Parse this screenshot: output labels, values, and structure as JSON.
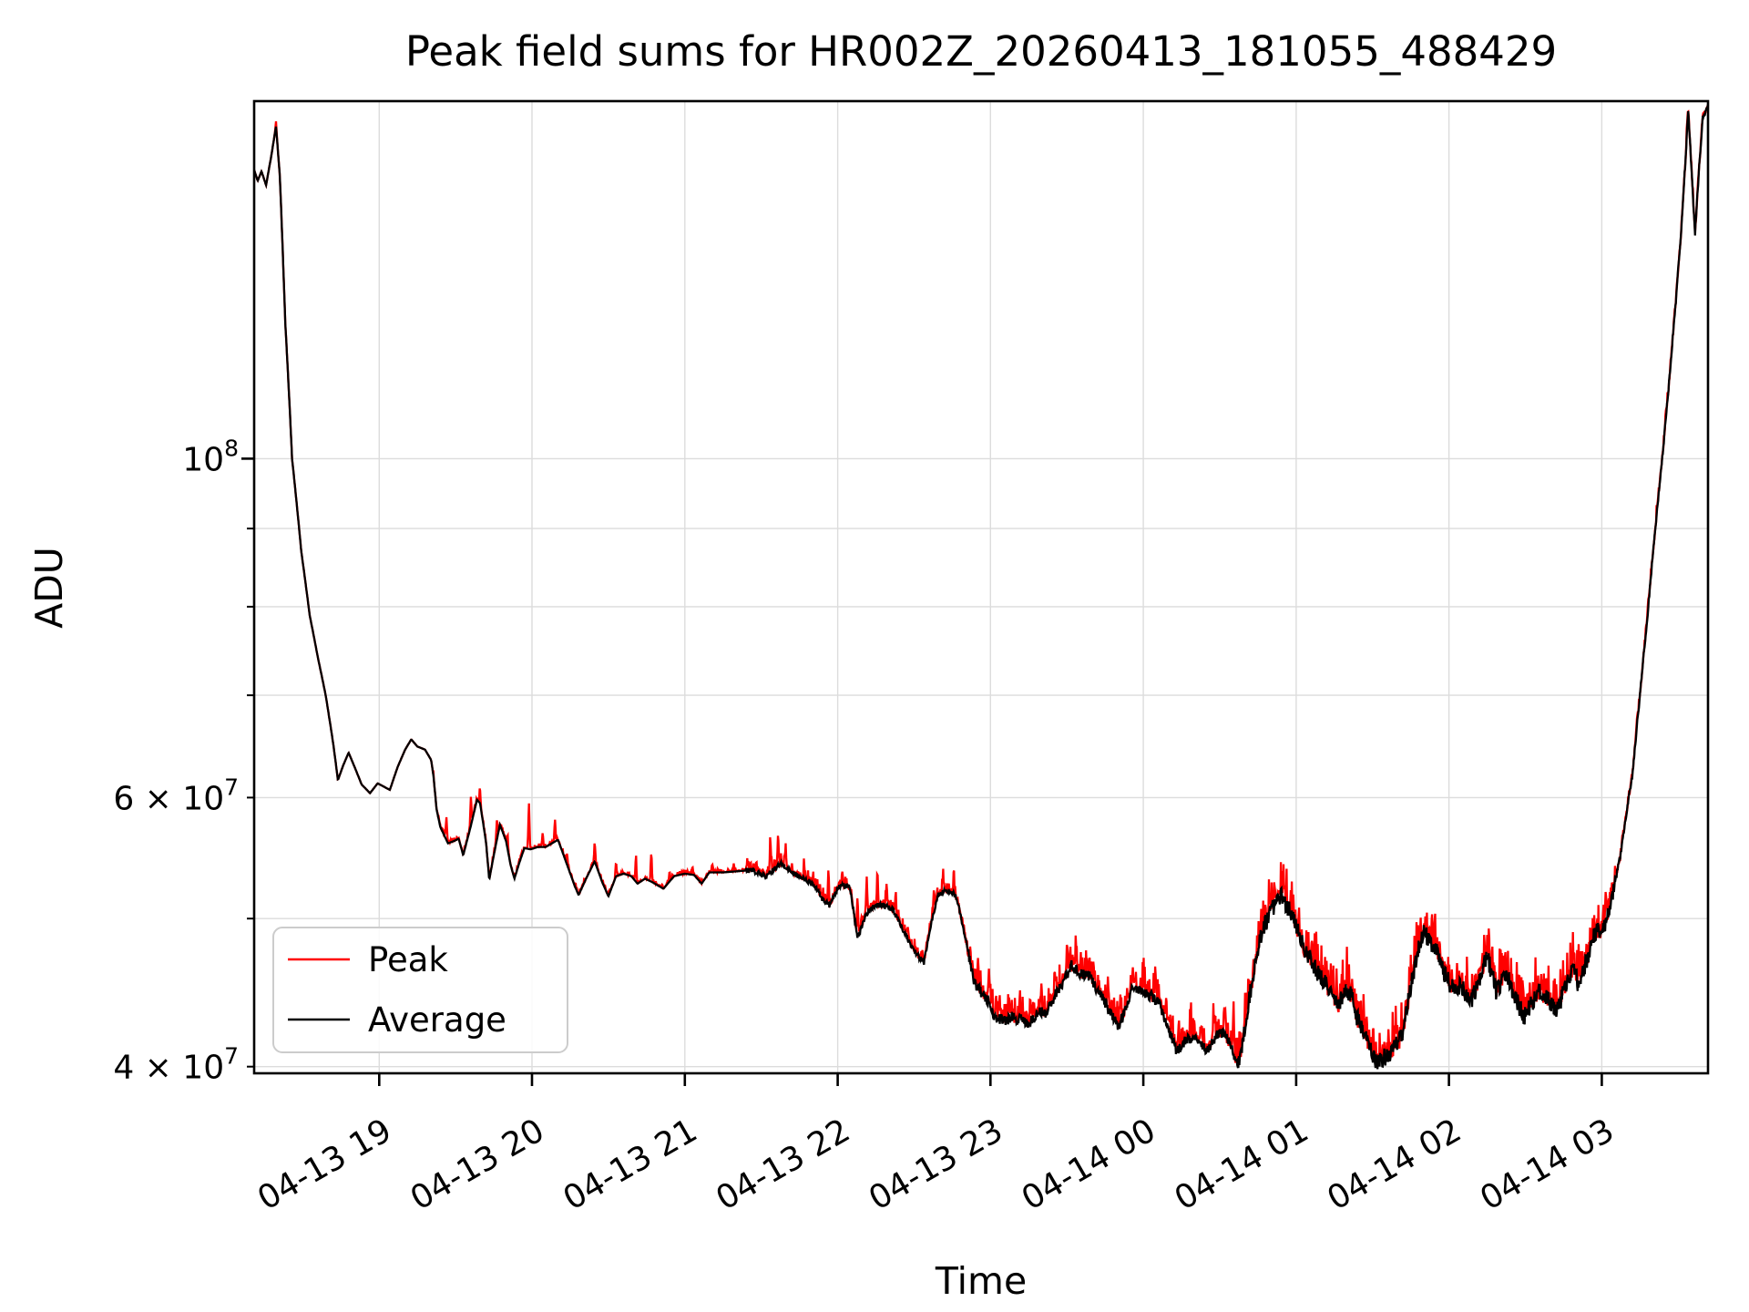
{
  "chart_data": {
    "type": "line",
    "title": "Peak field sums for HR002Z_20260413_181055_488429",
    "xlabel": "Time",
    "ylabel": "ADU",
    "yscale": "log",
    "grid": true,
    "legend_position": "lower left",
    "colors": {
      "peak": "#ff0000",
      "average": "#000000",
      "grid": "#dcdcdc",
      "frame": "#000000",
      "background": "#ffffff",
      "legend_border": "#cccccc"
    },
    "x_unit": "hours since 2026-04-13 00:00",
    "value_unit": "1e7 ADU",
    "xlim_hours": [
      18.1819,
      27.695
    ],
    "ylim": [
      39600000.0,
      171400000.0
    ],
    "x_ticks": [
      {
        "hour": 19,
        "label": "04-13 19"
      },
      {
        "hour": 20,
        "label": "04-13 20"
      },
      {
        "hour": 21,
        "label": "04-13 21"
      },
      {
        "hour": 22,
        "label": "04-13 22"
      },
      {
        "hour": 23,
        "label": "04-13 23"
      },
      {
        "hour": 24,
        "label": "04-14 00"
      },
      {
        "hour": 25,
        "label": "04-14 01"
      },
      {
        "hour": 26,
        "label": "04-14 02"
      },
      {
        "hour": 27,
        "label": "04-14 03"
      }
    ],
    "y_ticks": [
      {
        "value": 40000000.0,
        "label": "4 × 10^7",
        "major": false
      },
      {
        "value": 50000000.0,
        "label": "",
        "major": false
      },
      {
        "value": 60000000.0,
        "label": "6 × 10^7",
        "major": false
      },
      {
        "value": 70000000.0,
        "label": "",
        "major": false
      },
      {
        "value": 80000000.0,
        "label": "",
        "major": false
      },
      {
        "value": 90000000.0,
        "label": "",
        "major": false
      },
      {
        "value": 100000000.0,
        "label": "10^8",
        "major": true
      }
    ],
    "legend": [
      {
        "label": "Peak",
        "color": "#ff0000"
      },
      {
        "label": "Average",
        "color": "#000000"
      }
    ],
    "series": [
      {
        "name": "Average",
        "color": "#000000",
        "points": [
          [
            18.182,
            15.45
          ],
          [
            18.205,
            15.2
          ],
          [
            18.23,
            15.42
          ],
          [
            18.26,
            15.1
          ],
          [
            18.295,
            15.8
          ],
          [
            18.325,
            16.5
          ],
          [
            18.35,
            15.3
          ],
          [
            18.385,
            12.3
          ],
          [
            18.43,
            10.0
          ],
          [
            18.49,
            8.7
          ],
          [
            18.545,
            7.9
          ],
          [
            18.6,
            7.4
          ],
          [
            18.65,
            7.0
          ],
          [
            18.7,
            6.5
          ],
          [
            18.73,
            6.16
          ],
          [
            18.765,
            6.3
          ],
          [
            18.8,
            6.42
          ],
          [
            18.84,
            6.28
          ],
          [
            18.885,
            6.12
          ],
          [
            18.94,
            6.04
          ],
          [
            18.99,
            6.13
          ],
          [
            19.03,
            6.1
          ],
          [
            19.07,
            6.07
          ],
          [
            19.12,
            6.28
          ],
          [
            19.17,
            6.45
          ],
          [
            19.21,
            6.55
          ],
          [
            19.25,
            6.48
          ],
          [
            19.3,
            6.45
          ],
          [
            19.34,
            6.35
          ],
          [
            19.355,
            6.2
          ],
          [
            19.376,
            5.89
          ],
          [
            19.4,
            5.74
          ],
          [
            19.45,
            5.6
          ],
          [
            19.49,
            5.62
          ],
          [
            19.52,
            5.64
          ],
          [
            19.55,
            5.5
          ],
          [
            19.6,
            5.75
          ],
          [
            19.64,
            5.98
          ],
          [
            19.66,
            5.95
          ],
          [
            19.7,
            5.6
          ],
          [
            19.72,
            5.3
          ],
          [
            19.75,
            5.5
          ],
          [
            19.79,
            5.76
          ],
          [
            19.83,
            5.62
          ],
          [
            19.86,
            5.42
          ],
          [
            19.885,
            5.31
          ],
          [
            19.92,
            5.45
          ],
          [
            19.95,
            5.56
          ],
          [
            19.99,
            5.55
          ],
          [
            20.04,
            5.57
          ],
          [
            20.09,
            5.57
          ],
          [
            20.13,
            5.6
          ],
          [
            20.17,
            5.63
          ],
          [
            20.23,
            5.42
          ],
          [
            20.28,
            5.25
          ],
          [
            20.305,
            5.18
          ],
          [
            20.35,
            5.3
          ],
          [
            20.41,
            5.45
          ],
          [
            20.46,
            5.28
          ],
          [
            20.5,
            5.17
          ],
          [
            20.55,
            5.33
          ],
          [
            20.6,
            5.35
          ],
          [
            20.65,
            5.33
          ],
          [
            20.69,
            5.27
          ],
          [
            20.74,
            5.31
          ],
          [
            20.79,
            5.28
          ],
          [
            20.86,
            5.23
          ],
          [
            20.93,
            5.33
          ],
          [
            21.0,
            5.35
          ],
          [
            21.06,
            5.34
          ],
          [
            21.11,
            5.27
          ],
          [
            21.16,
            5.36
          ],
          [
            21.25,
            5.36
          ],
          [
            21.35,
            5.37
          ],
          [
            21.44,
            5.38
          ],
          [
            21.53,
            5.33
          ],
          [
            21.63,
            5.43
          ],
          [
            21.7,
            5.36
          ],
          [
            21.77,
            5.31
          ],
          [
            21.85,
            5.26
          ],
          [
            21.9,
            5.15
          ],
          [
            21.95,
            5.1
          ],
          [
            22.01,
            5.26
          ],
          [
            22.08,
            5.24
          ],
          [
            22.13,
            4.85
          ],
          [
            22.18,
            5.02
          ],
          [
            22.24,
            5.1
          ],
          [
            22.3,
            5.1
          ],
          [
            22.36,
            5.07
          ],
          [
            22.42,
            4.93
          ],
          [
            22.48,
            4.8
          ],
          [
            22.53,
            4.72
          ],
          [
            22.565,
            4.68
          ],
          [
            22.61,
            4.95
          ],
          [
            22.655,
            5.18
          ],
          [
            22.7,
            5.21
          ],
          [
            22.75,
            5.21
          ],
          [
            22.78,
            5.15
          ],
          [
            22.84,
            4.83
          ],
          [
            22.89,
            4.55
          ],
          [
            22.94,
            4.47
          ],
          [
            22.99,
            4.41
          ],
          [
            23.035,
            4.29
          ],
          [
            23.07,
            4.3
          ],
          [
            23.105,
            4.28
          ],
          [
            23.14,
            4.32
          ],
          [
            23.175,
            4.28
          ],
          [
            23.21,
            4.31
          ],
          [
            23.24,
            4.26
          ],
          [
            23.28,
            4.3
          ],
          [
            23.32,
            4.35
          ],
          [
            23.36,
            4.34
          ],
          [
            23.41,
            4.43
          ],
          [
            23.47,
            4.53
          ],
          [
            23.53,
            4.66
          ],
          [
            23.59,
            4.6
          ],
          [
            23.65,
            4.58
          ],
          [
            23.7,
            4.49
          ],
          [
            23.76,
            4.39
          ],
          [
            23.84,
            4.25
          ],
          [
            23.88,
            4.35
          ],
          [
            23.92,
            4.49
          ],
          [
            23.98,
            4.5
          ],
          [
            24.04,
            4.45
          ],
          [
            24.1,
            4.41
          ],
          [
            24.15,
            4.28
          ],
          [
            24.22,
            4.09
          ],
          [
            24.28,
            4.17
          ],
          [
            24.35,
            4.17
          ],
          [
            24.42,
            4.1
          ],
          [
            24.48,
            4.19
          ],
          [
            24.52,
            4.21
          ],
          [
            24.58,
            4.12
          ],
          [
            24.62,
            3.99
          ],
          [
            24.68,
            4.35
          ],
          [
            24.76,
            4.85
          ],
          [
            24.84,
            5.08
          ],
          [
            24.905,
            5.18
          ],
          [
            24.96,
            5.05
          ],
          [
            25.01,
            4.92
          ],
          [
            25.06,
            4.74
          ],
          [
            25.1,
            4.7
          ],
          [
            25.15,
            4.59
          ],
          [
            25.22,
            4.49
          ],
          [
            25.27,
            4.38
          ],
          [
            25.32,
            4.48
          ],
          [
            25.36,
            4.46
          ],
          [
            25.4,
            4.3
          ],
          [
            25.44,
            4.23
          ],
          [
            25.48,
            4.12
          ],
          [
            25.53,
            4.02
          ],
          [
            25.58,
            4.06
          ],
          [
            25.63,
            4.1
          ],
          [
            25.69,
            4.18
          ],
          [
            25.74,
            4.45
          ],
          [
            25.78,
            4.68
          ],
          [
            25.83,
            4.9
          ],
          [
            25.87,
            4.85
          ],
          [
            25.93,
            4.74
          ],
          [
            25.97,
            4.61
          ],
          [
            26.02,
            4.5
          ],
          [
            26.07,
            4.52
          ],
          [
            26.11,
            4.47
          ],
          [
            26.15,
            4.43
          ],
          [
            26.2,
            4.55
          ],
          [
            26.25,
            4.73
          ],
          [
            26.31,
            4.48
          ],
          [
            26.37,
            4.61
          ],
          [
            26.43,
            4.45
          ],
          [
            26.49,
            4.31
          ],
          [
            26.54,
            4.4
          ],
          [
            26.59,
            4.48
          ],
          [
            26.65,
            4.42
          ],
          [
            26.71,
            4.35
          ],
          [
            26.77,
            4.55
          ],
          [
            26.81,
            4.64
          ],
          [
            26.85,
            4.52
          ],
          [
            26.91,
            4.73
          ],
          [
            26.95,
            4.88
          ],
          [
            27.0,
            4.92
          ],
          [
            27.03,
            4.97
          ],
          [
            27.07,
            5.2
          ],
          [
            27.12,
            5.48
          ],
          [
            27.16,
            5.85
          ],
          [
            27.2,
            6.2
          ],
          [
            27.25,
            7.0
          ],
          [
            27.3,
            7.9
          ],
          [
            27.35,
            9.0
          ],
          [
            27.4,
            10.1
          ],
          [
            27.44,
            11.2
          ],
          [
            27.48,
            12.5
          ],
          [
            27.52,
            14.1
          ],
          [
            27.55,
            15.8
          ],
          [
            27.565,
            16.9
          ],
          [
            27.585,
            15.6
          ],
          [
            27.61,
            14.0
          ],
          [
            27.635,
            15.4
          ],
          [
            27.66,
            16.7
          ],
          [
            27.695,
            17.05
          ]
        ]
      },
      {
        "name": "Peak",
        "color": "#ff0000",
        "model": "average plus transient upward spikes and scatter envelope",
        "spikes": [
          [
            18.325,
            0.008
          ],
          [
            19.44,
            0.035
          ],
          [
            19.6,
            0.045
          ],
          [
            19.66,
            0.02
          ],
          [
            19.77,
            0.03
          ],
          [
            19.84,
            0.02
          ],
          [
            19.98,
            0.07
          ],
          [
            20.07,
            0.02
          ],
          [
            20.15,
            0.03
          ],
          [
            20.23,
            0.015
          ],
          [
            20.41,
            0.028
          ],
          [
            20.55,
            0.015
          ],
          [
            20.68,
            0.038
          ],
          [
            20.78,
            0.042
          ],
          [
            20.9,
            0.015
          ],
          [
            21.05,
            0.012
          ],
          [
            21.18,
            0.012
          ],
          [
            21.32,
            0.01
          ],
          [
            21.56,
            0.045
          ],
          [
            21.61,
            0.05
          ],
          [
            21.66,
            0.03
          ],
          [
            21.78,
            0.02
          ],
          [
            21.94,
            0.05
          ],
          [
            22.03,
            0.02
          ],
          [
            22.13,
            0.06
          ],
          [
            22.19,
            0.05
          ],
          [
            22.26,
            0.04
          ],
          [
            22.32,
            0.035
          ],
          [
            22.38,
            0.03
          ],
          [
            22.46,
            0.02
          ],
          [
            22.63,
            0.035
          ],
          [
            22.69,
            0.03
          ],
          [
            22.76,
            0.02
          ],
          [
            22.92,
            0.04
          ],
          [
            22.99,
            0.04
          ],
          [
            23.06,
            0.035
          ],
          [
            23.12,
            0.03
          ],
          [
            23.19,
            0.035
          ],
          [
            23.26,
            0.03
          ],
          [
            23.33,
            0.03
          ],
          [
            23.42,
            0.035
          ],
          [
            23.5,
            0.04
          ],
          [
            23.56,
            0.035
          ],
          [
            23.63,
            0.025
          ],
          [
            23.77,
            0.03
          ],
          [
            23.85,
            0.035
          ],
          [
            23.93,
            0.028
          ],
          [
            24.0,
            0.028
          ],
          [
            24.08,
            0.032
          ],
          [
            24.15,
            0.04
          ],
          [
            24.23,
            0.03
          ],
          [
            24.31,
            0.035
          ],
          [
            24.38,
            0.03
          ],
          [
            24.46,
            0.035
          ],
          [
            24.53,
            0.04
          ],
          [
            24.59,
            0.045
          ],
          [
            24.91,
            0.014
          ],
          [
            25.33,
            0.022
          ],
          [
            25.8,
            0.012
          ],
          [
            26.25,
            0.017
          ],
          [
            26.37,
            0.02
          ],
          [
            27.42,
            0.008
          ],
          [
            27.56,
            0.01
          ]
        ]
      }
    ],
    "scatter_model": {
      "black_segments": [
        [
          21.4,
          22.85,
          0.004
        ],
        [
          22.85,
          24.6,
          0.008
        ],
        [
          24.6,
          27.1,
          0.014
        ],
        [
          27.1,
          27.695,
          0.004
        ]
      ],
      "red_segments": [
        [
          19.35,
          21.4,
          0.006
        ],
        [
          21.4,
          22.85,
          0.018
        ],
        [
          22.85,
          24.6,
          0.035
        ],
        [
          24.6,
          27.1,
          0.052
        ],
        [
          27.1,
          27.695,
          0.012
        ]
      ]
    }
  }
}
